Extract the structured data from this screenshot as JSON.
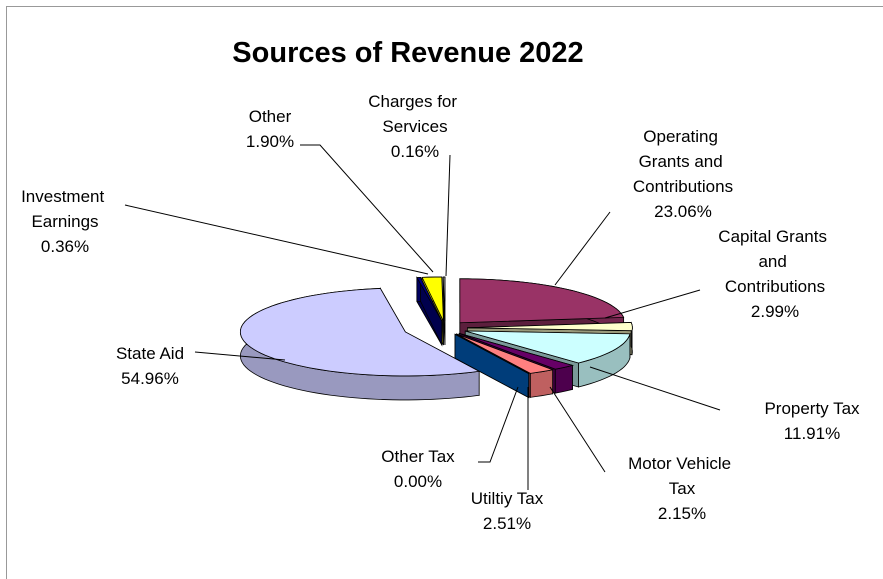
{
  "chart_data": {
    "type": "pie3d",
    "title": "Sources of Revenue 2022",
    "categories": [
      "Operating Grants and Contributions",
      "Capital Grants and Contributions",
      "Property Tax",
      "Motor Vehicle Tax",
      "Utiltiy Tax",
      "Other Tax",
      "State Aid",
      "Investment Earnings",
      "Other",
      "Charges for Services"
    ],
    "values": [
      23.06,
      2.99,
      11.91,
      2.15,
      2.51,
      0.0,
      54.96,
      0.36,
      1.9,
      0.16
    ],
    "value_labels": [
      "23.06%",
      "2.99%",
      "11.91%",
      "2.15%",
      "2.51%",
      "0.00%",
      "54.96%",
      "0.36%",
      "1.90%",
      "0.16%"
    ],
    "colors": [
      "#993366",
      "#FFFFCC",
      "#CCFFFF",
      "#660066",
      "#FF8080",
      "#0066CC",
      "#CCCCFF",
      "#000080",
      "#FFFF00",
      "#C0C0C0"
    ]
  }
}
